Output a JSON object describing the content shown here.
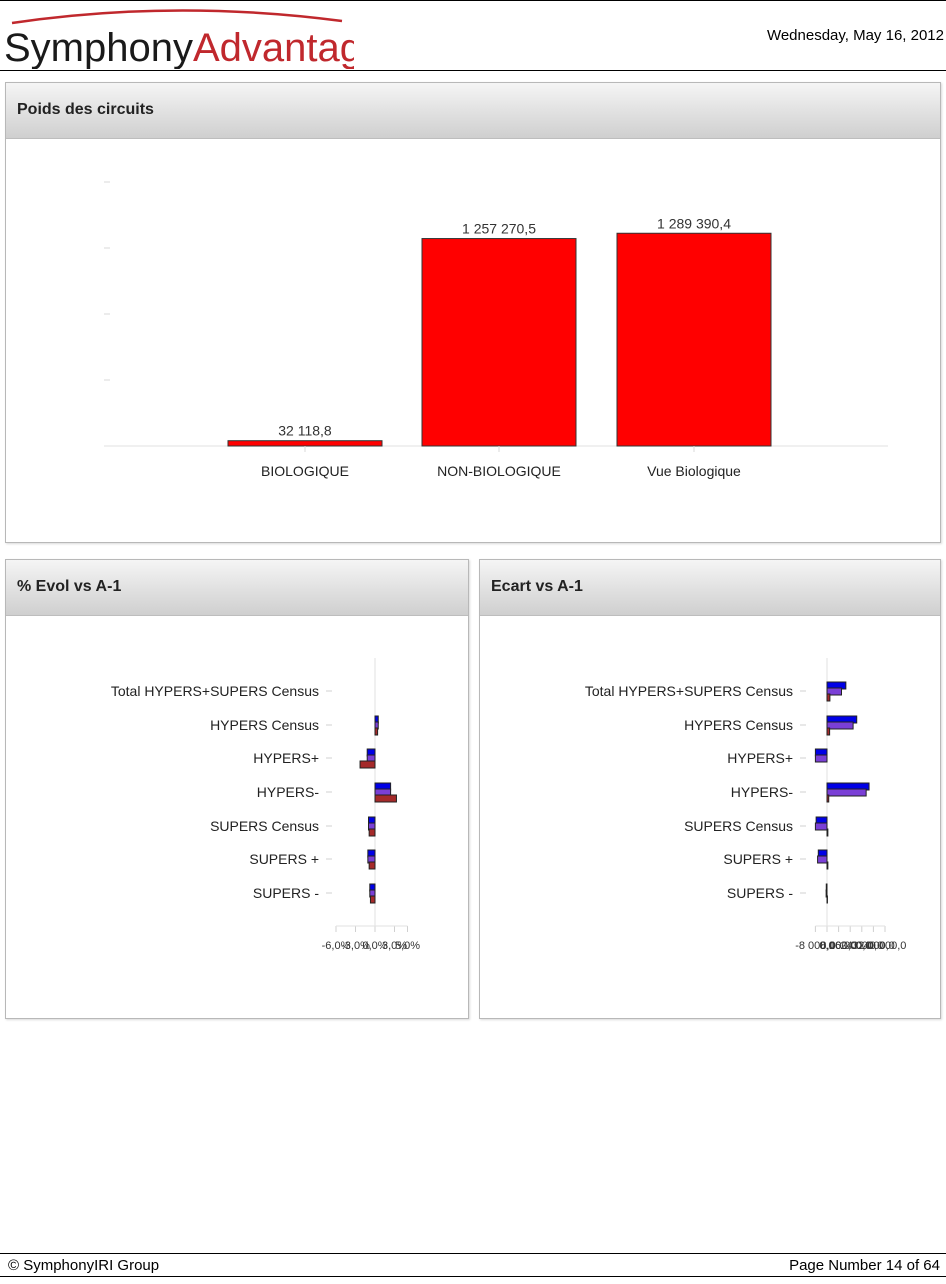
{
  "header": {
    "brand_part1": "Symphony",
    "brand_part2": "Advantage",
    "date": "Wednesday, May 16, 2012"
  },
  "colors": {
    "brand_dark": "#1a1a1a",
    "brand_red": "#c0282d",
    "bar_red": "#ff0000",
    "series_blue": "#0000e6",
    "series_purple": "#7a3fd6",
    "series_maroon": "#a52a2a"
  },
  "panels": {
    "poids": {
      "title": "Poids des circuits"
    },
    "evol": {
      "title": "% Evol vs A-1"
    },
    "ecart": {
      "title": "Ecart vs A-1"
    }
  },
  "chart_data": [
    {
      "type": "bar",
      "categories": [
        "BIOLOGIQUE",
        "NON-BIOLOGIQUE",
        "Vue Biologique"
      ],
      "values": [
        32118.8,
        1257270.5,
        1289390.4
      ],
      "value_labels": [
        "32 118,8",
        "1 257 270,5",
        "1 289 390,4"
      ],
      "ylim": [
        0,
        1600000
      ],
      "grid": false
    },
    {
      "type": "bar",
      "orientation": "horizontal",
      "categories": [
        "Total HYPERS+SUPERS Census",
        "HYPERS Census",
        "HYPERS+",
        "HYPERS-",
        "SUPERS Census",
        "SUPERS +",
        "SUPERS -"
      ],
      "series": [
        {
          "values": [
            0.0,
            0.5,
            -1.2,
            2.4,
            -1.0,
            -1.1,
            -0.8
          ]
        },
        {
          "values": [
            0.0,
            0.5,
            -1.2,
            2.4,
            -1.0,
            -1.1,
            -0.8
          ]
        },
        {
          "values": [
            0.0,
            0.4,
            -2.3,
            3.3,
            -0.9,
            -0.9,
            -0.7
          ]
        }
      ],
      "xlim": [
        -6.0,
        5.0
      ],
      "xticks": [
        -6.0,
        -3.0,
        0.0,
        3.0,
        5.0
      ],
      "xtick_labels": [
        "-6,0%",
        "-3,0%",
        "0,0%",
        "3,0%",
        "5,0%"
      ]
    },
    {
      "type": "bar",
      "orientation": "horizontal",
      "categories": [
        "Total HYPERS+SUPERS Census",
        "HYPERS Census",
        "HYPERS+",
        "HYPERS-",
        "SUPERS Census",
        "SUPERS +",
        "SUPERS -"
      ],
      "series": [
        {
          "values": [
            13000,
            20500,
            -8000,
            29000,
            -7500,
            -6000,
            -500
          ]
        },
        {
          "values": [
            10000,
            18000,
            -8000,
            27000,
            -8000,
            -6500,
            -600
          ]
        },
        {
          "values": [
            2000,
            1800,
            0,
            1200,
            600,
            600,
            300
          ]
        }
      ],
      "xlim": [
        -8000,
        40000
      ],
      "xticks": [
        -8000,
        0,
        8000,
        16000,
        24000,
        32000,
        40000
      ],
      "xtick_labels": [
        "-8 000,0",
        "0,0",
        "8 000,0",
        "16 000,0",
        "24 000,0",
        "32 000,0",
        "40 000,0"
      ]
    }
  ],
  "footer": {
    "copyright": "© SymphonyIRI Group",
    "page": "Page Number 14 of 64"
  }
}
